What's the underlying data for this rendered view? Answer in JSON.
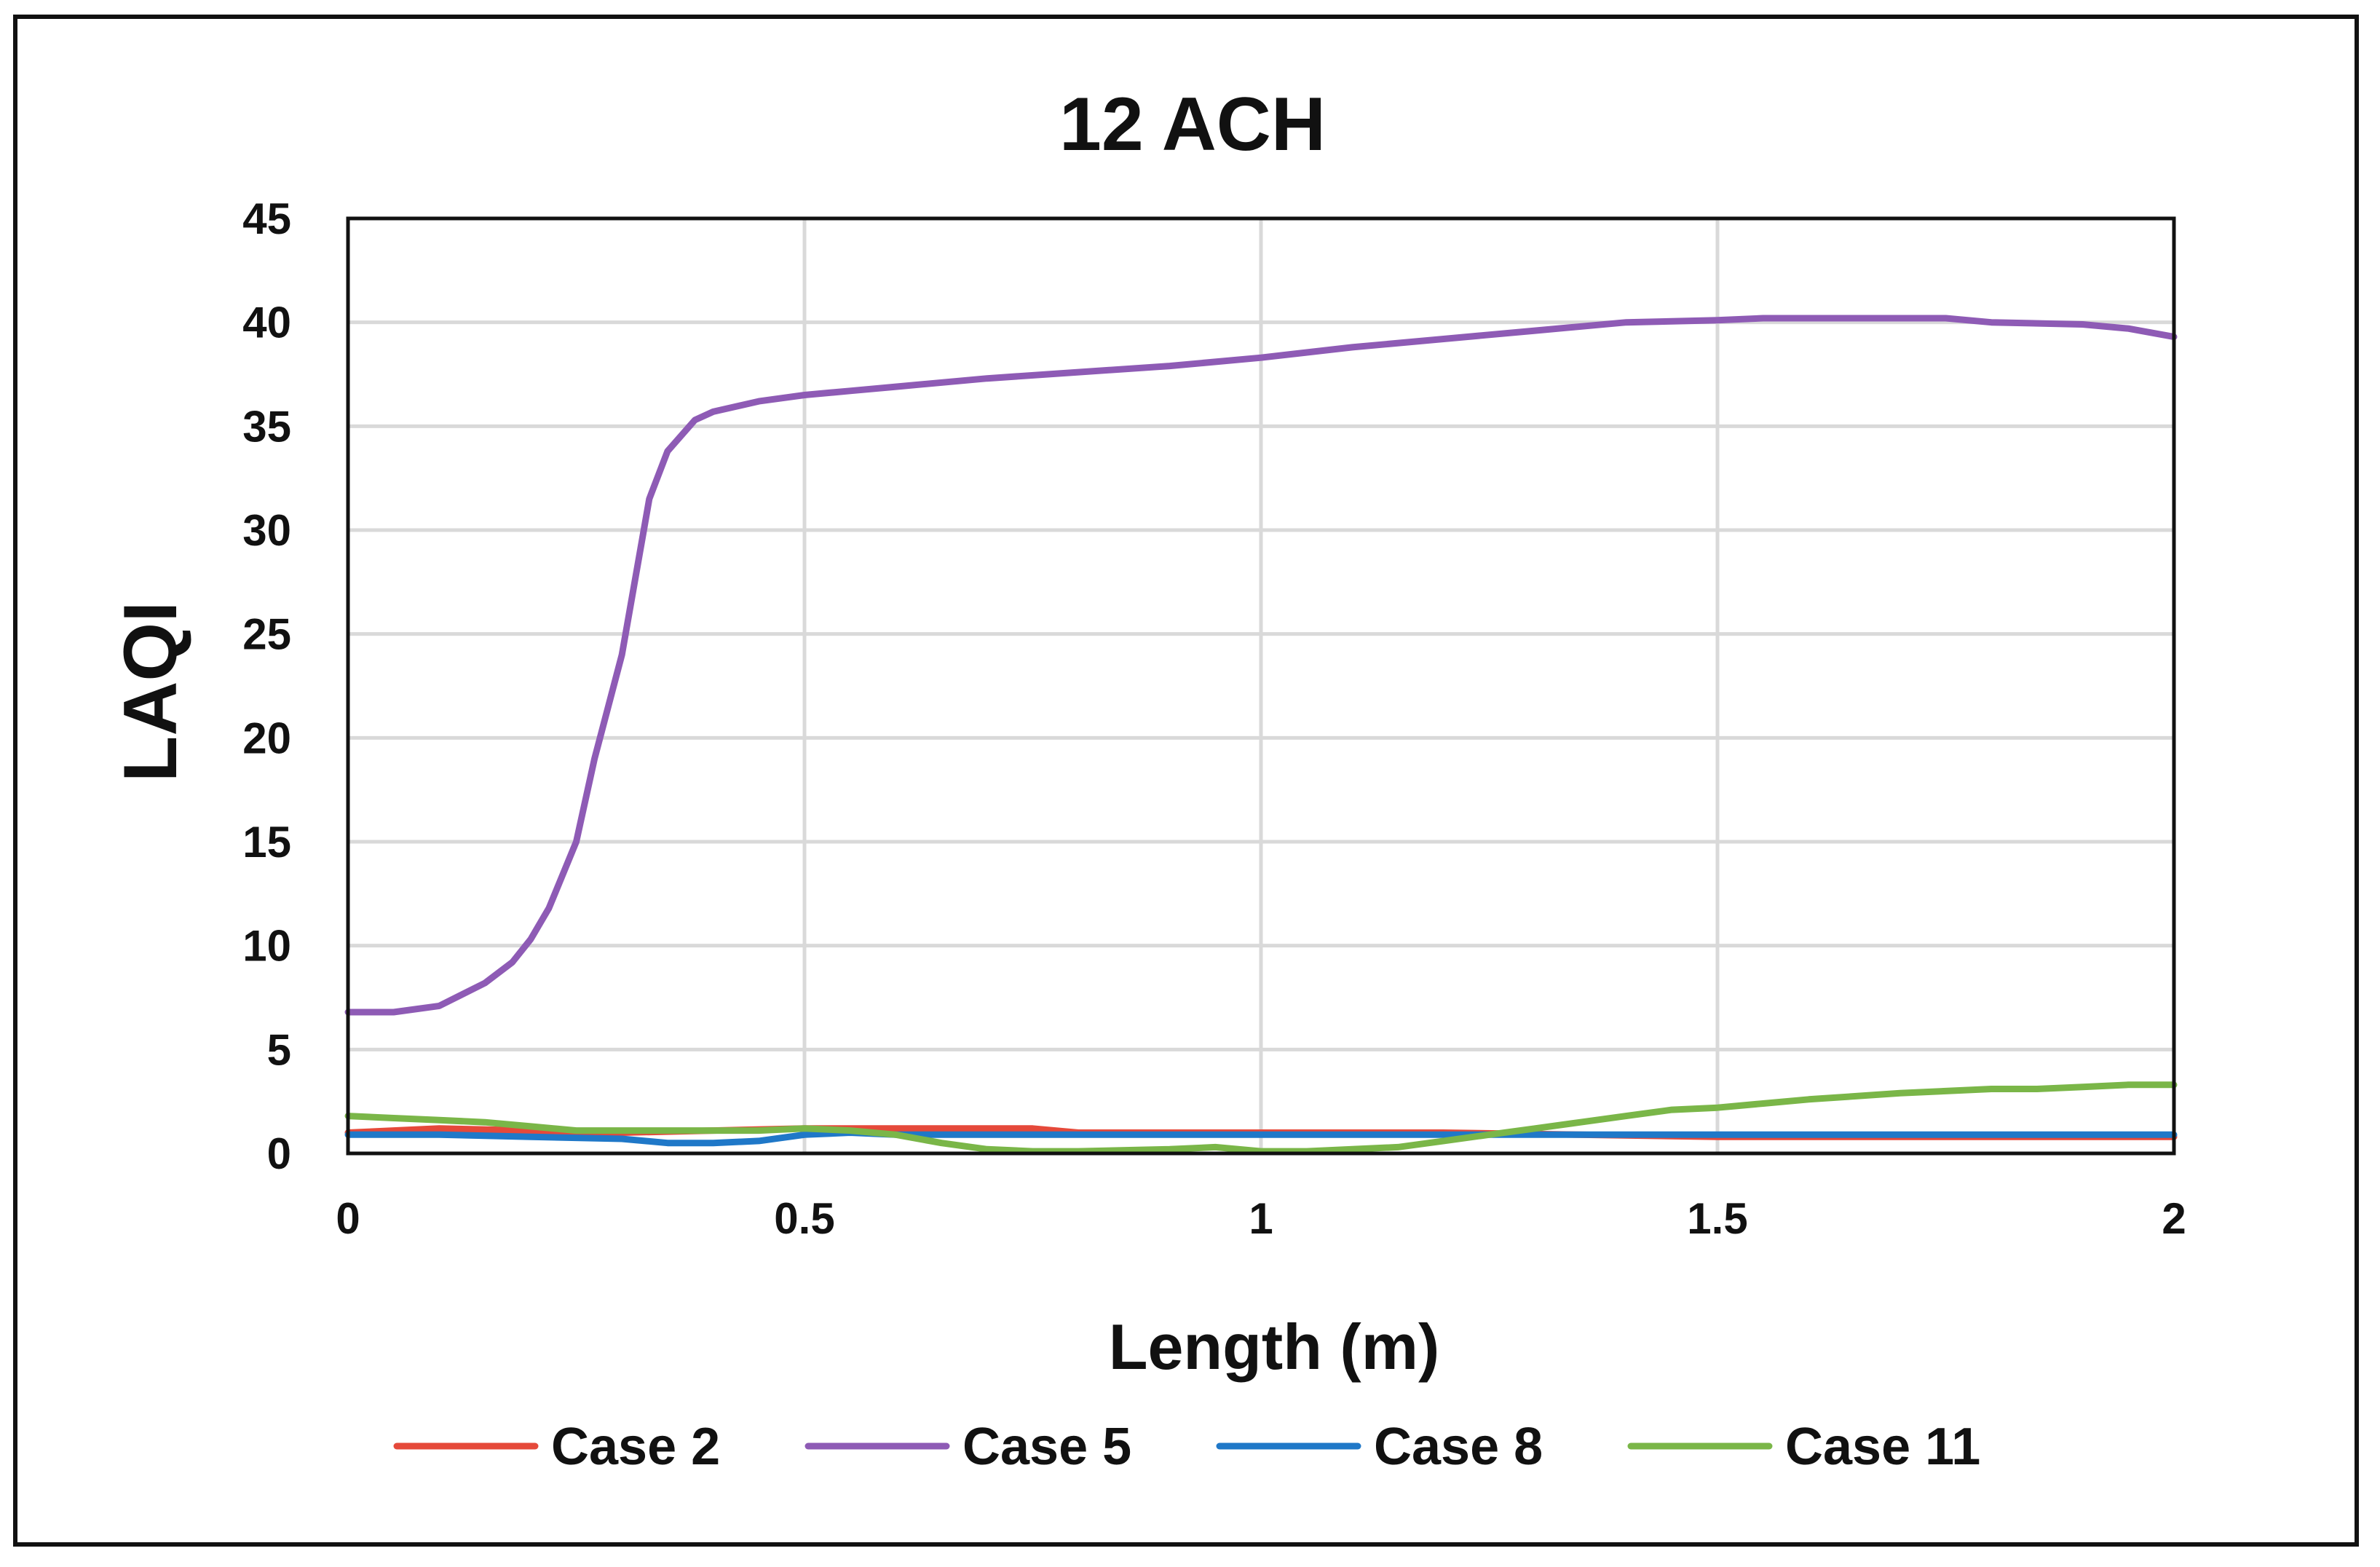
{
  "chart_data": {
    "type": "line",
    "title": "12 ACH",
    "xlabel": "Length (m)",
    "ylabel": "LAQI",
    "xlim": [
      0,
      2
    ],
    "ylim": [
      0,
      45
    ],
    "x_ticks": [
      "0",
      "0.5",
      "1",
      "1.5",
      "2"
    ],
    "y_ticks": [
      "0",
      "5",
      "10",
      "15",
      "20",
      "25",
      "30",
      "35",
      "40",
      "45"
    ],
    "grid": true,
    "legend_position": "bottom",
    "series": [
      {
        "name": "Case 2",
        "color": "#E5493A",
        "x": [
          0,
          0.1,
          0.2,
          0.3,
          0.4,
          0.5,
          0.6,
          0.7,
          0.75,
          0.8,
          1.0,
          1.2,
          1.5,
          1.7,
          2.0
        ],
        "y": [
          1.0,
          1.2,
          1.1,
          1.0,
          1.1,
          1.2,
          1.2,
          1.2,
          1.2,
          1.0,
          1.0,
          1.0,
          0.8,
          0.8,
          0.8
        ]
      },
      {
        "name": "Case 5",
        "color": "#8E5BB5",
        "x": [
          0,
          0.05,
          0.1,
          0.15,
          0.18,
          0.2,
          0.22,
          0.25,
          0.27,
          0.3,
          0.33,
          0.35,
          0.38,
          0.4,
          0.45,
          0.5,
          0.55,
          0.6,
          0.7,
          0.8,
          0.9,
          1.0,
          1.1,
          1.2,
          1.3,
          1.4,
          1.5,
          1.55,
          1.6,
          1.7,
          1.75,
          1.8,
          1.9,
          1.95,
          2.0
        ],
        "y": [
          6.8,
          6.8,
          7.1,
          8.2,
          9.2,
          10.3,
          11.8,
          15.0,
          19.0,
          24.0,
          31.5,
          33.8,
          35.3,
          35.7,
          36.2,
          36.5,
          36.7,
          36.9,
          37.3,
          37.6,
          37.9,
          38.3,
          38.8,
          39.2,
          39.6,
          40.0,
          40.1,
          40.2,
          40.2,
          40.2,
          40.2,
          40.0,
          39.9,
          39.7,
          39.3
        ]
      },
      {
        "name": "Case 8",
        "color": "#1F78C8",
        "x": [
          0,
          0.1,
          0.2,
          0.3,
          0.35,
          0.4,
          0.45,
          0.5,
          0.55,
          0.6,
          0.8,
          1.0,
          1.2,
          1.5,
          1.7,
          2.0
        ],
        "y": [
          0.9,
          0.9,
          0.8,
          0.7,
          0.5,
          0.5,
          0.6,
          0.9,
          1.0,
          0.9,
          0.9,
          0.9,
          0.9,
          0.9,
          0.9,
          0.9
        ]
      },
      {
        "name": "Case 11",
        "color": "#7AB648",
        "x": [
          0,
          0.05,
          0.1,
          0.15,
          0.2,
          0.25,
          0.3,
          0.35,
          0.4,
          0.45,
          0.5,
          0.55,
          0.6,
          0.65,
          0.7,
          0.75,
          0.8,
          0.9,
          0.95,
          1.0,
          1.05,
          1.1,
          1.15,
          1.2,
          1.25,
          1.3,
          1.35,
          1.4,
          1.45,
          1.5,
          1.55,
          1.6,
          1.7,
          1.75,
          1.8,
          1.85,
          1.9,
          1.95,
          2.0
        ],
        "y": [
          1.8,
          1.7,
          1.6,
          1.5,
          1.3,
          1.1,
          1.1,
          1.1,
          1.1,
          1.1,
          1.2,
          1.1,
          0.9,
          0.5,
          0.2,
          0.1,
          0.1,
          0.2,
          0.3,
          0.1,
          0.1,
          0.2,
          0.3,
          0.6,
          0.9,
          1.2,
          1.5,
          1.8,
          2.1,
          2.2,
          2.4,
          2.6,
          2.9,
          3.0,
          3.1,
          3.1,
          3.2,
          3.3,
          3.3
        ]
      }
    ]
  }
}
